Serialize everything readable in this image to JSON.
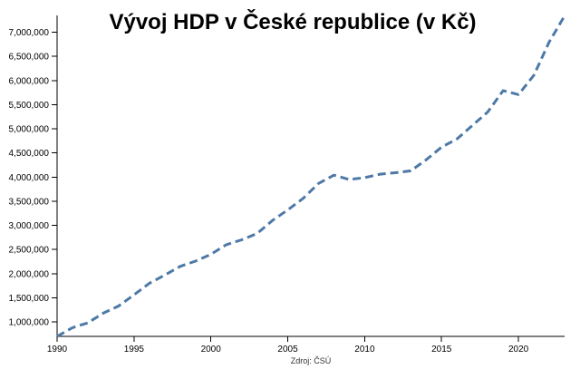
{
  "chart_data": {
    "type": "line",
    "title": "Vývoj HDP v České republice (v Kč)",
    "source": "Zdroj: ČSÚ",
    "x": [
      1990,
      1991,
      1992,
      1993,
      1994,
      1995,
      1996,
      1997,
      1998,
      1999,
      2000,
      2001,
      2002,
      2003,
      2004,
      2005,
      2006,
      2007,
      2008,
      2009,
      2010,
      2011,
      2012,
      2013,
      2014,
      2015,
      2016,
      2017,
      2018,
      2019,
      2020,
      2021,
      2022,
      2023
    ],
    "series": [
      {
        "values": [
          700000,
          880000,
          980000,
          1180000,
          1330000,
          1560000,
          1800000,
          1970000,
          2150000,
          2260000,
          2400000,
          2600000,
          2700000,
          2830000,
          3100000,
          3320000,
          3560000,
          3870000,
          4040000,
          3950000,
          3990000,
          4060000,
          4090000,
          4130000,
          4360000,
          4620000,
          4790000,
          5070000,
          5350000,
          5790000,
          5710000,
          6110000,
          6800000,
          7340000
        ]
      }
    ],
    "xlim": [
      1990,
      2023
    ],
    "ylim": [
      700000,
      7350000
    ],
    "x_ticks": [
      1990,
      1995,
      2000,
      2005,
      2010,
      2015,
      2020
    ],
    "x_tick_labels": [
      "1990",
      "1995",
      "2000",
      "2005",
      "2010",
      "2015",
      "2020"
    ],
    "y_ticks": [
      1000000,
      1500000,
      2000000,
      2500000,
      3000000,
      3500000,
      4000000,
      4500000,
      5000000,
      5500000,
      6000000,
      6500000,
      7000000
    ],
    "y_tick_labels": [
      "1,000,000",
      "1,500,000",
      "2,000,000",
      "2,500,000",
      "3,000,000",
      "3,500,000",
      "4,000,000",
      "4,500,000",
      "5,000,000",
      "5,500,000",
      "6,000,000",
      "6,500,000",
      "7,000,000"
    ],
    "grid": false,
    "line_style": "dashed",
    "line_color": "#4e79a7"
  }
}
